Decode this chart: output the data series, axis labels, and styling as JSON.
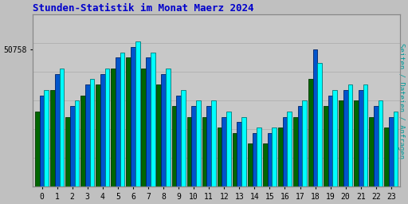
{
  "title": "Stunden-Statistik im Monat Maerz 2024",
  "title_color": "#0000cc",
  "title_fontsize": 9,
  "ylabel": "Seiten / Dateien / Anfragen",
  "ylabel_color": "#009999",
  "background_color": "#c0c0c0",
  "plot_bg_color": "#c8c8c8",
  "hours": [
    0,
    1,
    2,
    3,
    4,
    5,
    6,
    7,
    8,
    9,
    10,
    11,
    12,
    13,
    14,
    15,
    16,
    17,
    18,
    19,
    20,
    21,
    22,
    23
  ],
  "ytick_label": "50758",
  "bar_width": 0.9,
  "series_cyan": [
    50720,
    50740,
    50710,
    50730,
    50740,
    50755,
    50765,
    50755,
    50740,
    50720,
    50710,
    50710,
    50700,
    50695,
    50685,
    50685,
    50700,
    50710,
    50745,
    50720,
    50725,
    50725,
    50710,
    50700
  ],
  "series_blue": [
    50715,
    50735,
    50705,
    50725,
    50735,
    50750,
    50760,
    50750,
    50735,
    50715,
    50705,
    50705,
    50695,
    50690,
    50680,
    50680,
    50695,
    50705,
    50758,
    50715,
    50720,
    50720,
    50705,
    50695
  ],
  "series_green": [
    50700,
    50720,
    50695,
    50715,
    50725,
    50740,
    50750,
    50740,
    50725,
    50705,
    50695,
    50695,
    50685,
    50680,
    50670,
    50670,
    50685,
    50695,
    50730,
    50705,
    50710,
    50710,
    50695,
    50685
  ],
  "color_cyan": "#00ffff",
  "color_blue": "#0055cc",
  "color_green": "#006600",
  "edge_cyan": "#007777",
  "edge_blue": "#002266",
  "edge_green": "#003300",
  "ylim_min": 50630,
  "ylim_max": 50790,
  "yticks": [
    50758
  ],
  "grid_color": "#aaaaaa",
  "grid_steps": 6
}
